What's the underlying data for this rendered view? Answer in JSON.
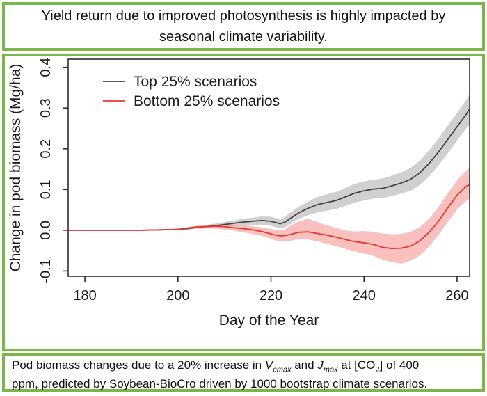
{
  "header": {
    "title": "Yield return due to improved photosynthesis is highly impacted by seasonal climate variability."
  },
  "caption": {
    "lines": [
      [
        {
          "text": "Pod biomass changes due to a 20% increase in "
        },
        {
          "text": "V",
          "style": "i"
        },
        {
          "text": "cmax",
          "style": "isub"
        },
        {
          "text": " and "
        },
        {
          "text": "J",
          "style": "i"
        },
        {
          "text": "max",
          "style": "isub"
        },
        {
          "text": " at [CO"
        },
        {
          "text": "2",
          "style": "sub"
        },
        {
          "text": "] of 400"
        }
      ],
      [
        {
          "text": "ppm, predicted by Soybean-BioCro driven by 1000 bootstrap climate scenarios."
        }
      ]
    ]
  },
  "colors": {
    "frame_green": "#7ab648",
    "axis": "#2e2e2e",
    "background": "#ffffff"
  },
  "chart_data": {
    "type": "line",
    "title": "",
    "xlabel": "Day of the Year",
    "ylabel": "Change in pod biomass (Mg/ha)",
    "xlim": [
      176.4,
      262.7
    ],
    "ylim": [
      -0.113,
      0.42
    ],
    "xticks": [
      180,
      200,
      220,
      240,
      260
    ],
    "yticks": [
      -0.1,
      0.0,
      0.1,
      0.2,
      0.3,
      0.4
    ],
    "grid": false,
    "legend_position": "top-left-inside",
    "x": [
      176.4,
      180,
      184,
      188,
      192,
      196,
      200,
      202,
      204,
      206,
      208,
      210,
      212,
      214,
      216,
      218,
      220,
      221,
      222,
      223,
      224,
      226,
      228,
      230,
      232,
      234,
      236,
      238,
      240,
      242,
      244,
      246,
      248,
      250,
      252,
      254,
      256,
      258,
      260,
      262,
      262.7
    ],
    "series": [
      {
        "name": "Top 25% scenarios",
        "color": "#454545",
        "band_color": "#c4c4c4",
        "band_opacity": 0.8,
        "values": [
          0,
          0,
          0,
          0,
          0,
          0.001,
          0.002,
          0.004,
          0.007,
          0.009,
          0.011,
          0.014,
          0.017,
          0.02,
          0.022,
          0.024,
          0.022,
          0.019,
          0.016,
          0.02,
          0.028,
          0.043,
          0.054,
          0.063,
          0.068,
          0.073,
          0.082,
          0.091,
          0.097,
          0.101,
          0.103,
          0.109,
          0.116,
          0.125,
          0.141,
          0.164,
          0.192,
          0.223,
          0.254,
          0.285,
          0.298
        ],
        "hi": [
          0,
          0,
          0,
          0,
          0.001,
          0.002,
          0.004,
          0.006,
          0.01,
          0.013,
          0.016,
          0.02,
          0.024,
          0.028,
          0.031,
          0.034,
          0.033,
          0.03,
          0.028,
          0.033,
          0.042,
          0.058,
          0.071,
          0.082,
          0.088,
          0.094,
          0.104,
          0.114,
          0.12,
          0.124,
          0.127,
          0.134,
          0.142,
          0.153,
          0.171,
          0.196,
          0.225,
          0.257,
          0.288,
          0.32,
          0.335
        ],
        "lo": [
          0,
          0,
          0,
          0,
          -0.001,
          0,
          0,
          0.002,
          0.004,
          0.005,
          0.006,
          0.008,
          0.01,
          0.012,
          0.013,
          0.014,
          0.011,
          0.008,
          0.004,
          0.007,
          0.014,
          0.028,
          0.037,
          0.044,
          0.048,
          0.052,
          0.06,
          0.068,
          0.073,
          0.078,
          0.079,
          0.084,
          0.09,
          0.097,
          0.111,
          0.132,
          0.159,
          0.189,
          0.22,
          0.25,
          0.261
        ]
      },
      {
        "name": "Bottom 25% scenarios",
        "color": "#e8372f",
        "band_color": "#f7a8a8",
        "band_opacity": 0.72,
        "values": [
          0,
          0,
          0,
          0,
          0,
          0.001,
          0.002,
          0.005,
          0.008,
          0.009,
          0.01,
          0.009,
          0.006,
          0.004,
          0.001,
          -0.003,
          -0.009,
          -0.012,
          -0.014,
          -0.013,
          -0.011,
          -0.005,
          -0.004,
          -0.008,
          -0.012,
          -0.017,
          -0.023,
          -0.028,
          -0.031,
          -0.035,
          -0.042,
          -0.045,
          -0.044,
          -0.039,
          -0.026,
          -0.005,
          0.022,
          0.055,
          0.086,
          0.108,
          0.112
        ],
        "hi": [
          0,
          0,
          0,
          0,
          0.001,
          0.002,
          0.004,
          0.008,
          0.011,
          0.013,
          0.015,
          0.015,
          0.014,
          0.012,
          0.01,
          0.007,
          0.003,
          0.001,
          -0.001,
          0.002,
          0.01,
          0.022,
          0.028,
          0.02,
          0.012,
          0.006,
          -0.001,
          -0.003,
          -0.002,
          -0.004,
          -0.008,
          -0.01,
          -0.009,
          -0.004,
          0.008,
          0.028,
          0.057,
          0.091,
          0.122,
          0.147,
          0.153
        ],
        "lo": [
          0,
          0,
          0,
          0,
          -0.001,
          0,
          0,
          0.002,
          0.004,
          0.004,
          0.004,
          0.002,
          -0.001,
          -0.005,
          -0.009,
          -0.014,
          -0.021,
          -0.025,
          -0.028,
          -0.027,
          -0.026,
          -0.022,
          -0.023,
          -0.027,
          -0.033,
          -0.039,
          -0.046,
          -0.052,
          -0.057,
          -0.063,
          -0.072,
          -0.078,
          -0.082,
          -0.075,
          -0.062,
          -0.04,
          -0.012,
          0.02,
          0.051,
          0.072,
          0.078
        ]
      }
    ]
  }
}
